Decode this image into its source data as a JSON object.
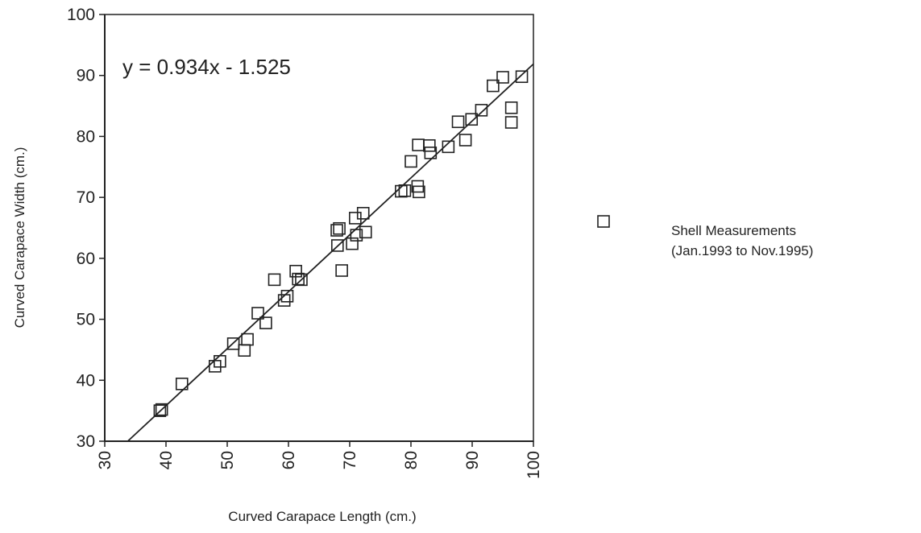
{
  "chart_data": {
    "type": "scatter",
    "title": "",
    "equation": "y = 0.934x - 1.525",
    "xlabel": "Curved Carapace Length (cm.)",
    "ylabel": "Curved Carapace Width (cm.)",
    "xlim": [
      30,
      100
    ],
    "ylim": [
      30,
      100
    ],
    "xticks": [
      "30",
      "40",
      "50",
      "60",
      "70",
      "80",
      "90",
      "100"
    ],
    "yticks": [
      "30",
      "40",
      "50",
      "60",
      "70",
      "80",
      "90",
      "100"
    ],
    "grid": false,
    "legend": {
      "placement": "right",
      "line1": "Shell Measurements",
      "line2": "(Jan.1993 to Nov.1995)"
    },
    "trendline": {
      "slope": 0.934,
      "intercept": -1.525
    },
    "series": [
      {
        "name": "Shell Measurements (Jan.1993 to Nov.1995)",
        "marker": "open-square",
        "points": [
          [
            39,
            35
          ],
          [
            39.3,
            35.2
          ],
          [
            42.6,
            39.4
          ],
          [
            48,
            42.3
          ],
          [
            48.8,
            43.1
          ],
          [
            51,
            46
          ],
          [
            52.8,
            44.9
          ],
          [
            53.3,
            46.7
          ],
          [
            55,
            51
          ],
          [
            56.3,
            49.4
          ],
          [
            57.7,
            56.5
          ],
          [
            59.3,
            53.1
          ],
          [
            59.8,
            53.8
          ],
          [
            61.2,
            57.9
          ],
          [
            61.6,
            56.6
          ],
          [
            62.1,
            56.5
          ],
          [
            67.9,
            64.6
          ],
          [
            68,
            62.1
          ],
          [
            68.3,
            64.9
          ],
          [
            68.7,
            58
          ],
          [
            70.4,
            62.4
          ],
          [
            70.9,
            66.6
          ],
          [
            71.1,
            63.8
          ],
          [
            72.2,
            67.4
          ],
          [
            72.6,
            64.3
          ],
          [
            78.4,
            71
          ],
          [
            79,
            71.1
          ],
          [
            80,
            75.9
          ],
          [
            81.1,
            71.8
          ],
          [
            81.2,
            78.6
          ],
          [
            81.3,
            70.9
          ],
          [
            83,
            78.5
          ],
          [
            83.2,
            77.3
          ],
          [
            86.1,
            78.3
          ],
          [
            87.7,
            82.4
          ],
          [
            88.9,
            79.4
          ],
          [
            89.9,
            82.8
          ],
          [
            91.5,
            84.3
          ],
          [
            93.4,
            88.3
          ],
          [
            95,
            89.7
          ],
          [
            96.4,
            84.7
          ],
          [
            96.4,
            82.3
          ],
          [
            98.1,
            89.8
          ]
        ]
      }
    ]
  }
}
